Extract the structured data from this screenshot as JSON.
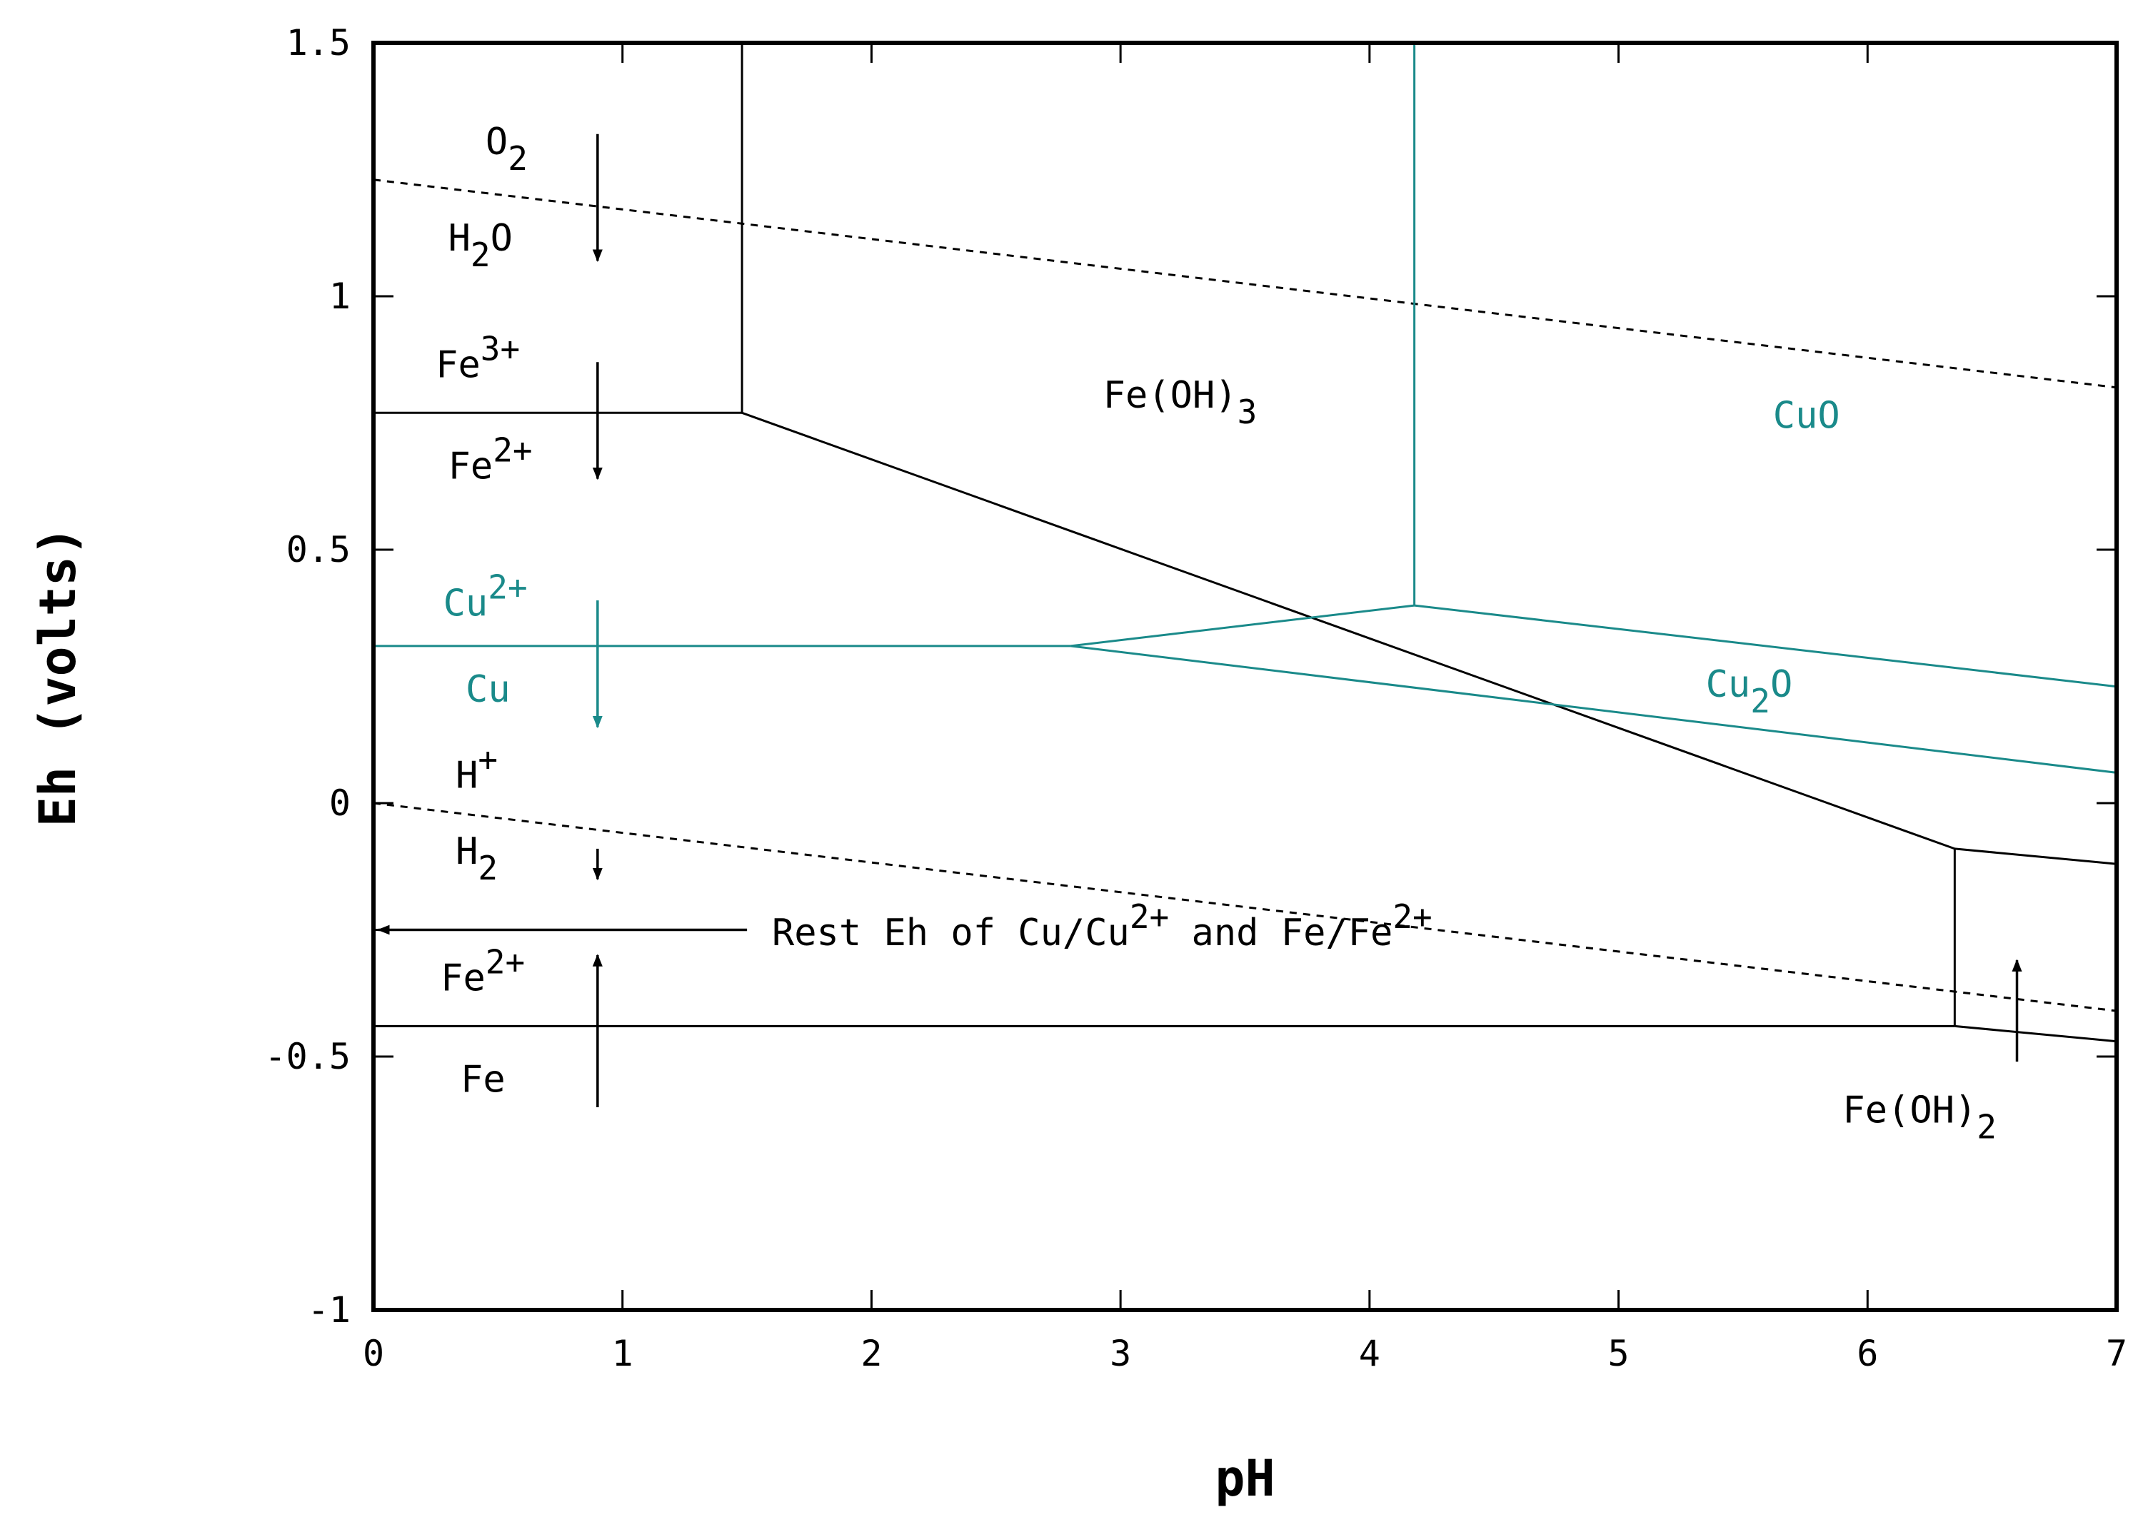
{
  "colors": {
    "black": "#000000",
    "teal": "#1a8a8a"
  },
  "chart_data": {
    "type": "line",
    "title": "",
    "xlabel": "pH",
    "ylabel": "Eh (volts)",
    "xlim": [
      0,
      7
    ],
    "ylim": [
      -1,
      1.5
    ],
    "x_ticks": [
      0,
      1,
      2,
      3,
      4,
      5,
      6,
      7
    ],
    "x_tick_labels": [
      "0",
      "1",
      "2",
      "3",
      "4",
      "5",
      "6",
      "7"
    ],
    "y_ticks": [
      -1,
      -0.5,
      0,
      0.5,
      1,
      1.5
    ],
    "y_tick_labels": [
      "-1",
      "-0.5",
      "0",
      "0.5",
      "1",
      "1.5"
    ],
    "grid": false,
    "series": [
      {
        "style": "dashed",
        "color": "black",
        "x": [
          0,
          7
        ],
        "y": [
          1.23,
          0.82
        ]
      },
      {
        "style": "dashed",
        "color": "black",
        "x": [
          0,
          7
        ],
        "y": [
          0.0,
          -0.41
        ]
      },
      {
        "style": "solid",
        "color": "black",
        "x": [
          0,
          1.48
        ],
        "y": [
          0.77,
          0.77
        ]
      },
      {
        "style": "solid",
        "color": "black",
        "x": [
          1.48,
          1.48
        ],
        "y": [
          0.77,
          1.5
        ]
      },
      {
        "style": "solid",
        "color": "black",
        "x": [
          1.48,
          6.35
        ],
        "y": [
          0.77,
          -0.09
        ]
      },
      {
        "style": "solid",
        "color": "black",
        "x": [
          6.35,
          7
        ],
        "y": [
          -0.09,
          -0.12
        ]
      },
      {
        "style": "solid",
        "color": "black",
        "x": [
          6.35,
          6.35
        ],
        "y": [
          -0.09,
          -0.44
        ]
      },
      {
        "style": "solid",
        "color": "black",
        "x": [
          0,
          6.35
        ],
        "y": [
          -0.44,
          -0.44
        ]
      },
      {
        "style": "solid",
        "color": "black",
        "x": [
          6.35,
          7
        ],
        "y": [
          -0.44,
          -0.47
        ]
      },
      {
        "style": "solid",
        "color": "teal",
        "x": [
          0,
          2.8
        ],
        "y": [
          0.31,
          0.31
        ]
      },
      {
        "style": "solid",
        "color": "teal",
        "x": [
          2.8,
          4.18
        ],
        "y": [
          0.31,
          0.39
        ]
      },
      {
        "style": "solid",
        "color": "teal",
        "x": [
          4.18,
          4.18
        ],
        "y": [
          0.39,
          1.5
        ]
      },
      {
        "style": "solid",
        "color": "teal",
        "x": [
          4.18,
          7
        ],
        "y": [
          0.39,
          0.23
        ]
      },
      {
        "style": "solid",
        "color": "teal",
        "x": [
          2.8,
          7
        ],
        "y": [
          0.31,
          0.06
        ]
      },
      {
        "style": "solid",
        "color": "black",
        "x": [
          0,
          1.5
        ],
        "y": [
          -0.25,
          -0.25
        ]
      }
    ],
    "arrows": [
      {
        "color": "black",
        "x": 0.9,
        "y_from": 1.32,
        "y_to": 1.07
      },
      {
        "color": "black",
        "x": 0.9,
        "y_from": 0.87,
        "y_to": 0.64
      },
      {
        "color": "teal",
        "x": 0.9,
        "y_from": 0.4,
        "y_to": 0.15
      },
      {
        "color": "black",
        "x": 0.9,
        "y_from": -0.09,
        "y_to": -0.15
      },
      {
        "color": "black",
        "x": 0.9,
        "y_from": -0.6,
        "y_to": -0.3
      },
      {
        "color": "black",
        "x": 6.6,
        "y_from": -0.51,
        "y_to": -0.31
      },
      {
        "color": "black",
        "x_from": 1.5,
        "x_to": 0.02,
        "y": -0.25
      }
    ],
    "annotations": [
      {
        "text": "O",
        "sub": "2",
        "x": 0.45,
        "y": 1.28,
        "color": "black"
      },
      {
        "text": "H",
        "sub": "2",
        "tail": "O",
        "x": 0.3,
        "y": 1.09,
        "color": "black"
      },
      {
        "text": "Fe",
        "sup": "3+",
        "x": 0.25,
        "y": 0.84,
        "color": "black"
      },
      {
        "text": "Fe",
        "sup": "2+",
        "x": 0.3,
        "y": 0.64,
        "color": "black"
      },
      {
        "text": "Cu",
        "sup": "2+",
        "x": 0.28,
        "y": 0.37,
        "color": "teal"
      },
      {
        "text": "Cu",
        "x": 0.37,
        "y": 0.2,
        "color": "teal"
      },
      {
        "text": "H",
        "sup": "+",
        "x": 0.33,
        "y": 0.03,
        "color": "black"
      },
      {
        "text": "H",
        "sub": "2",
        "x": 0.33,
        "y": -0.12,
        "color": "black"
      },
      {
        "text": "Fe",
        "sup": "2+",
        "x": 0.27,
        "y": -0.37,
        "color": "black"
      },
      {
        "text": "Fe",
        "x": 0.35,
        "y": -0.57,
        "color": "black"
      },
      {
        "text": "Fe(OH)",
        "sub": "3",
        "x": 2.93,
        "y": 0.78,
        "color": "black"
      },
      {
        "text": "CuO",
        "x": 5.62,
        "y": 0.74,
        "color": "teal"
      },
      {
        "text": "Cu",
        "sub": "2",
        "tail": "O",
        "x": 5.35,
        "y": 0.21,
        "color": "teal"
      },
      {
        "text": "Fe(OH)",
        "sub": "2",
        "x": 5.9,
        "y": -0.63,
        "color": "black"
      },
      {
        "text": "Rest Eh of Cu/Cu",
        "sup": "2+",
        "tail": " and Fe/Fe",
        "sup2": "2+",
        "x": 1.6,
        "y": -0.28,
        "color": "black"
      }
    ]
  }
}
